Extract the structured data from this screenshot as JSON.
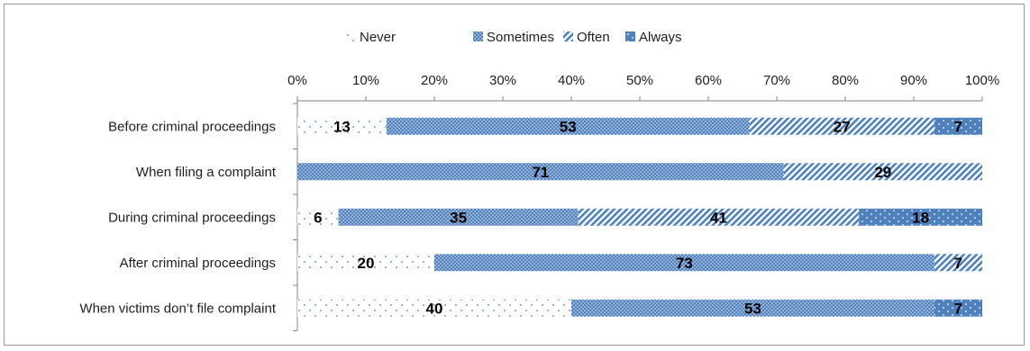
{
  "chart_data": {
    "type": "bar",
    "orientation": "horizontal",
    "stacked": "100%",
    "title": "",
    "xlabel": "",
    "ylabel": "",
    "xlim": [
      0,
      100
    ],
    "x_ticks": [
      "0%",
      "10%",
      "20%",
      "30%",
      "40%",
      "50%",
      "60%",
      "70%",
      "80%",
      "90%",
      "100%"
    ],
    "grid": false,
    "legend_position": "top",
    "categories": [
      "Before criminal proceedings",
      "When filing a complaint",
      "During criminal proceedings",
      "After criminal proceedings",
      "When victims don’t file complaint"
    ],
    "series": [
      {
        "name": "Never",
        "values": [
          13,
          0,
          6,
          20,
          40
        ],
        "pattern": "sparse-dots",
        "color": "#4f81bd"
      },
      {
        "name": "Sometimes",
        "values": [
          53,
          71,
          35,
          73,
          53
        ],
        "pattern": "dense-dots",
        "color": "#4f81bd"
      },
      {
        "name": "Often",
        "values": [
          27,
          29,
          41,
          7,
          0
        ],
        "pattern": "diagonal-stripes",
        "color": "#4f81bd"
      },
      {
        "name": "Always",
        "values": [
          7,
          0,
          18,
          0,
          7
        ],
        "pattern": "solid-dots",
        "color": "#4f81bd"
      }
    ]
  }
}
